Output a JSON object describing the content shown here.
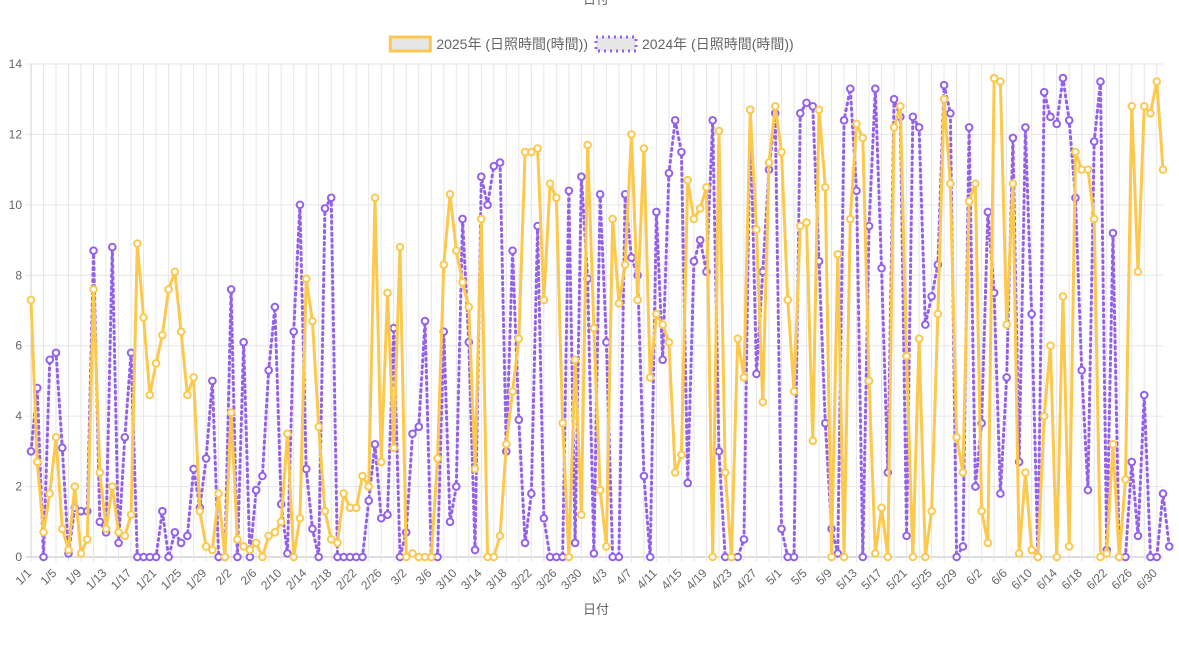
{
  "top_label": "日付",
  "chart_data": {
    "type": "line",
    "xlabel": "日付",
    "ylabel": "",
    "ylim": [
      0,
      14
    ],
    "yticks": [
      0,
      2,
      4,
      6,
      8,
      10,
      12,
      14
    ],
    "grid": true,
    "legend": "top-center",
    "xtick_labels": [
      "1/1",
      "1/5",
      "1/9",
      "1/13",
      "1/17",
      "1/21",
      "1/25",
      "1/29",
      "2/2",
      "2/6",
      "2/10",
      "2/14",
      "2/18",
      "2/22",
      "2/26",
      "3/2",
      "3/6",
      "3/10",
      "3/14",
      "3/18",
      "3/22",
      "3/26",
      "3/30",
      "4/3",
      "4/7",
      "4/11",
      "4/15",
      "4/19",
      "4/23",
      "4/27",
      "5/1",
      "5/5",
      "5/9",
      "5/13",
      "5/17",
      "5/21",
      "5/25",
      "5/29",
      "6/2",
      "6/6",
      "6/10",
      "6/14",
      "6/18",
      "6/22",
      "6/26",
      "6/30"
    ],
    "series": [
      {
        "name": "2025年 (日照時間(時間))",
        "color": "#fcc94e",
        "dash": "solid",
        "values": [
          7.3,
          2.7,
          0.7,
          1.8,
          3.4,
          0.8,
          0.2,
          2.0,
          0.1,
          0.5,
          7.6,
          2.4,
          0.8,
          2.0,
          0.7,
          0.6,
          1.2,
          8.9,
          6.8,
          4.6,
          5.5,
          6.3,
          7.6,
          8.1,
          6.4,
          4.6,
          5.1,
          1.3,
          0.3,
          0.2,
          1.8,
          0.0,
          4.1,
          0.5,
          0.3,
          0.2,
          0.4,
          0.0,
          0.6,
          0.7,
          1.0,
          3.5,
          0.0,
          1.1,
          7.9,
          6.7,
          3.7,
          1.3,
          0.5,
          0.4,
          1.8,
          1.4,
          1.4,
          2.3,
          2.0,
          10.2,
          2.7,
          7.5,
          3.1,
          8.8,
          0.0,
          0.1,
          0.0,
          0.0,
          0.0,
          2.8,
          8.3,
          10.3,
          8.7,
          7.8,
          7.1,
          2.5,
          9.6,
          0.0,
          0.0,
          0.6,
          3.2,
          4.7,
          6.2,
          11.5,
          11.5,
          11.6,
          7.3,
          10.6,
          10.2,
          3.8,
          0.0,
          5.6,
          1.2,
          11.7,
          6.5,
          1.9,
          0.3,
          9.6,
          7.2,
          8.3,
          12.0,
          7.3,
          11.6,
          5.1,
          6.9,
          6.6,
          6.1,
          2.4,
          2.9,
          10.7,
          9.6,
          9.9,
          10.5,
          0.0,
          12.1,
          2.4,
          0.0,
          6.2,
          5.1,
          12.7,
          9.3,
          4.4,
          11.2,
          12.8,
          11.5,
          7.3,
          4.7,
          9.4,
          9.5,
          3.3,
          12.7,
          10.5,
          0.0,
          8.6,
          0.0,
          9.6,
          12.3,
          11.9,
          5.0,
          0.1,
          1.4,
          0.0,
          12.2,
          12.8,
          5.7,
          0.0,
          6.2,
          0.0,
          1.3,
          6.9,
          13.0,
          10.6,
          3.4,
          2.4,
          10.1,
          10.6,
          1.3,
          0.4,
          13.6,
          13.5,
          6.6,
          10.6,
          0.1,
          2.4,
          0.2,
          0.0,
          4.0,
          6.0,
          0.0,
          7.4,
          0.3,
          11.5,
          11.0,
          11.0,
          9.6,
          0.0,
          0.1,
          3.2,
          0.0,
          2.2,
          12.8,
          8.1,
          12.8,
          12.6,
          13.5,
          11.0
        ]
      },
      {
        "name": "2024年 (日照時間(時間))",
        "color": "#9461ed",
        "dash": "dotted",
        "values": [
          3.0,
          4.8,
          0.0,
          5.6,
          5.8,
          3.1,
          0.1,
          1.4,
          1.3,
          1.3,
          8.7,
          1.0,
          0.7,
          8.8,
          0.4,
          3.4,
          5.8,
          0.0,
          0.0,
          0.0,
          0.0,
          1.3,
          0.0,
          0.7,
          0.4,
          0.6,
          2.5,
          1.4,
          2.8,
          5.0,
          0.0,
          0.0,
          7.6,
          0.0,
          6.1,
          0.0,
          1.9,
          2.3,
          5.3,
          7.1,
          1.5,
          0.1,
          6.4,
          10.0,
          2.5,
          0.8,
          0.0,
          9.9,
          10.2,
          0.0,
          0.0,
          0.0,
          0.0,
          0.0,
          1.6,
          3.2,
          1.1,
          1.2,
          6.5,
          0.0,
          0.7,
          3.5,
          3.7,
          6.7,
          0.0,
          0.0,
          6.4,
          1.0,
          2.0,
          9.6,
          6.1,
          0.2,
          10.8,
          10.0,
          11.1,
          11.2,
          3.0,
          8.7,
          3.9,
          0.4,
          1.8,
          9.4,
          1.1,
          0.0,
          0.0,
          0.0,
          10.4,
          0.4,
          10.8,
          7.9,
          0.1,
          10.3,
          6.1,
          0.0,
          0.0,
          10.3,
          8.5,
          8.0,
          2.3,
          0.0,
          9.8,
          5.6,
          10.9,
          12.4,
          11.5,
          2.1,
          8.4,
          9.0,
          8.1,
          12.4,
          3.0,
          0.0,
          0.0,
          0.0,
          0.5,
          12.7,
          5.2,
          8.1,
          11.0,
          12.6,
          0.8,
          0.0,
          0.0,
          12.6,
          12.9,
          12.8,
          8.4,
          3.8,
          0.8,
          0.1,
          12.4,
          13.3,
          10.4,
          0.0,
          9.4,
          13.3,
          8.2,
          2.4,
          13.0,
          12.5,
          0.6,
          12.5,
          12.2,
          6.6,
          7.4,
          8.3,
          13.4,
          12.6,
          0.0,
          0.3,
          12.2,
          2.0,
          3.8,
          9.8,
          7.5,
          1.8,
          5.1,
          11.9,
          2.7,
          12.2,
          6.9,
          0.0,
          13.2,
          12.5,
          12.3,
          13.6,
          12.4,
          10.2,
          5.3,
          1.9,
          11.8,
          13.5,
          0.2,
          9.2,
          0.0,
          0.0,
          2.7,
          0.6,
          4.6,
          0.0,
          0.0,
          1.8,
          0.3
        ]
      }
    ]
  }
}
